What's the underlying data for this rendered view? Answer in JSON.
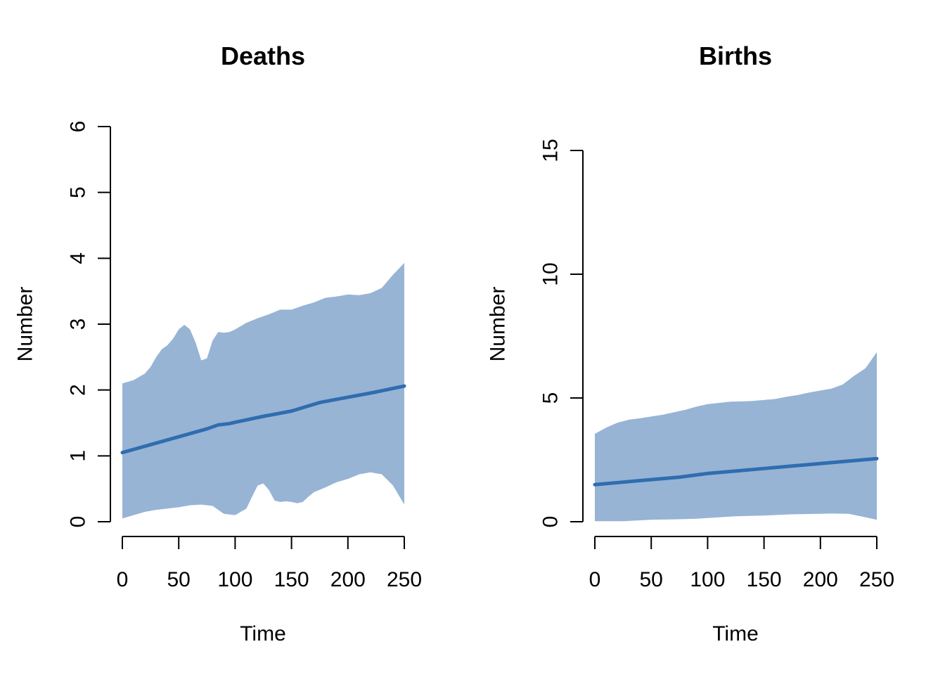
{
  "chart_data": [
    {
      "type": "area",
      "title": "Deaths",
      "xlabel": "Time",
      "ylabel": "Number",
      "xlim": [
        0,
        250
      ],
      "ylim": [
        0,
        6
      ],
      "xticks": [
        0,
        50,
        100,
        150,
        200,
        250
      ],
      "yticks": [
        0,
        1,
        2,
        3,
        4,
        5,
        6
      ],
      "band_color": "#97B4D5",
      "line_color": "#2F6DAF",
      "series": [
        {
          "role": "median",
          "x": [
            0,
            25,
            50,
            75,
            85,
            95,
            100,
            125,
            150,
            175,
            200,
            225,
            250
          ],
          "y": [
            1.05,
            1.17,
            1.29,
            1.41,
            1.47,
            1.49,
            1.51,
            1.6,
            1.68,
            1.81,
            1.89,
            1.97,
            2.06
          ]
        },
        {
          "role": "upper",
          "x": [
            0,
            10,
            20,
            25,
            30,
            35,
            40,
            45,
            50,
            55,
            60,
            65,
            70,
            75,
            80,
            85,
            90,
            95,
            100,
            110,
            120,
            130,
            140,
            150,
            160,
            170,
            180,
            190,
            200,
            210,
            220,
            230,
            240,
            250
          ],
          "y": [
            2.1,
            2.15,
            2.25,
            2.35,
            2.5,
            2.62,
            2.68,
            2.78,
            2.92,
            2.99,
            2.92,
            2.72,
            2.45,
            2.48,
            2.75,
            2.88,
            2.87,
            2.88,
            2.92,
            3.02,
            3.09,
            3.15,
            3.22,
            3.22,
            3.28,
            3.33,
            3.4,
            3.42,
            3.45,
            3.44,
            3.47,
            3.55,
            3.75,
            3.93
          ]
        },
        {
          "role": "lower",
          "x": [
            0,
            10,
            20,
            30,
            40,
            50,
            60,
            70,
            80,
            90,
            100,
            110,
            115,
            120,
            125,
            130,
            135,
            140,
            145,
            150,
            155,
            160,
            165,
            170,
            180,
            190,
            200,
            210,
            220,
            230,
            240,
            250
          ],
          "y": [
            0.05,
            0.1,
            0.15,
            0.18,
            0.2,
            0.22,
            0.25,
            0.26,
            0.24,
            0.12,
            0.1,
            0.2,
            0.38,
            0.55,
            0.58,
            0.48,
            0.32,
            0.3,
            0.31,
            0.3,
            0.28,
            0.3,
            0.38,
            0.45,
            0.52,
            0.6,
            0.65,
            0.72,
            0.75,
            0.72,
            0.55,
            0.26
          ]
        }
      ]
    },
    {
      "type": "area",
      "title": "Births",
      "xlabel": "Time",
      "ylabel": "Number",
      "xlim": [
        0,
        250
      ],
      "ylim": [
        0,
        15
      ],
      "xticks": [
        0,
        50,
        100,
        150,
        200,
        250
      ],
      "yticks": [
        0,
        5,
        10,
        15
      ],
      "band_color": "#97B4D5",
      "line_color": "#2F6DAF",
      "series": [
        {
          "role": "median",
          "x": [
            0,
            25,
            50,
            75,
            100,
            125,
            150,
            175,
            200,
            225,
            250
          ],
          "y": [
            1.5,
            1.6,
            1.7,
            1.8,
            1.95,
            2.05,
            2.15,
            2.25,
            2.35,
            2.45,
            2.55
          ]
        },
        {
          "role": "upper",
          "x": [
            0,
            10,
            20,
            30,
            40,
            50,
            60,
            70,
            80,
            90,
            100,
            110,
            120,
            130,
            140,
            150,
            160,
            170,
            180,
            190,
            200,
            210,
            220,
            230,
            240,
            250
          ],
          "y": [
            3.55,
            3.8,
            4.0,
            4.12,
            4.18,
            4.25,
            4.32,
            4.42,
            4.52,
            4.65,
            4.75,
            4.8,
            4.85,
            4.86,
            4.88,
            4.92,
            4.96,
            5.05,
            5.12,
            5.22,
            5.3,
            5.38,
            5.55,
            5.9,
            6.2,
            6.85
          ]
        },
        {
          "role": "lower",
          "x": [
            0,
            25,
            50,
            75,
            90,
            100,
            125,
            150,
            175,
            200,
            210,
            225,
            240,
            250
          ],
          "y": [
            0.02,
            0.02,
            0.08,
            0.1,
            0.12,
            0.15,
            0.22,
            0.25,
            0.3,
            0.32,
            0.33,
            0.32,
            0.18,
            0.08
          ]
        }
      ]
    }
  ]
}
